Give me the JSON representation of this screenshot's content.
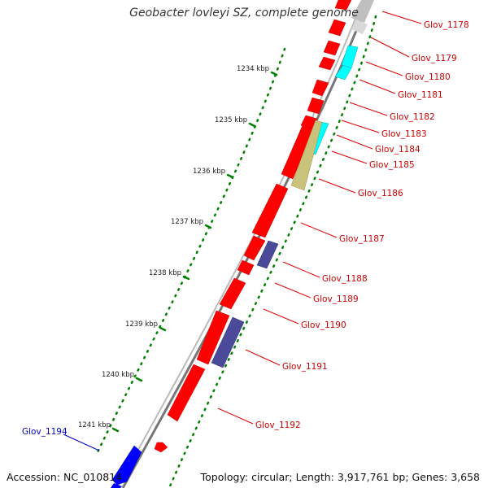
{
  "title": "Geobacter lovleyi SZ, complete genome",
  "accession": "Accession: NC_010814",
  "summary": "Topology: circular; Length: 3,917,761 bp; Genes: 3,658",
  "tick_labels": [
    "1234 kbp",
    "1235 kbp",
    "1236 kbp",
    "1237 kbp",
    "1238 kbp",
    "1239 kbp",
    "1240 kbp",
    "1241 kbp"
  ],
  "colors": {
    "backbone": "#888888",
    "cds_forward": "#ff0000",
    "cds_reverse": "#0000ff",
    "feature_cyan": "#00ffff",
    "feature_khaki": "#c9c27a",
    "feature_purple": "#4b4a9a",
    "gc_dots": "#008000",
    "label_forward": "#cc0000",
    "label_reverse": "#0000cc"
  },
  "gene_labels": [
    {
      "text": "Glov_1178",
      "strand": "forward"
    },
    {
      "text": "Glov_1179",
      "strand": "forward"
    },
    {
      "text": "Glov_1180",
      "strand": "forward"
    },
    {
      "text": "Glov_1181",
      "strand": "forward"
    },
    {
      "text": "Glov_1182",
      "strand": "forward"
    },
    {
      "text": "Glov_1183",
      "strand": "forward"
    },
    {
      "text": "Glov_1184",
      "strand": "forward"
    },
    {
      "text": "Glov_1185",
      "strand": "forward"
    },
    {
      "text": "Glov_1186",
      "strand": "forward"
    },
    {
      "text": "Glov_1187",
      "strand": "forward"
    },
    {
      "text": "Glov_1188",
      "strand": "forward"
    },
    {
      "text": "Glov_1189",
      "strand": "forward"
    },
    {
      "text": "Glov_1190",
      "strand": "forward"
    },
    {
      "text": "Glov_1191",
      "strand": "forward"
    },
    {
      "text": "Glov_1192",
      "strand": "forward"
    },
    {
      "text": "Glov_1194",
      "strand": "reverse"
    }
  ]
}
